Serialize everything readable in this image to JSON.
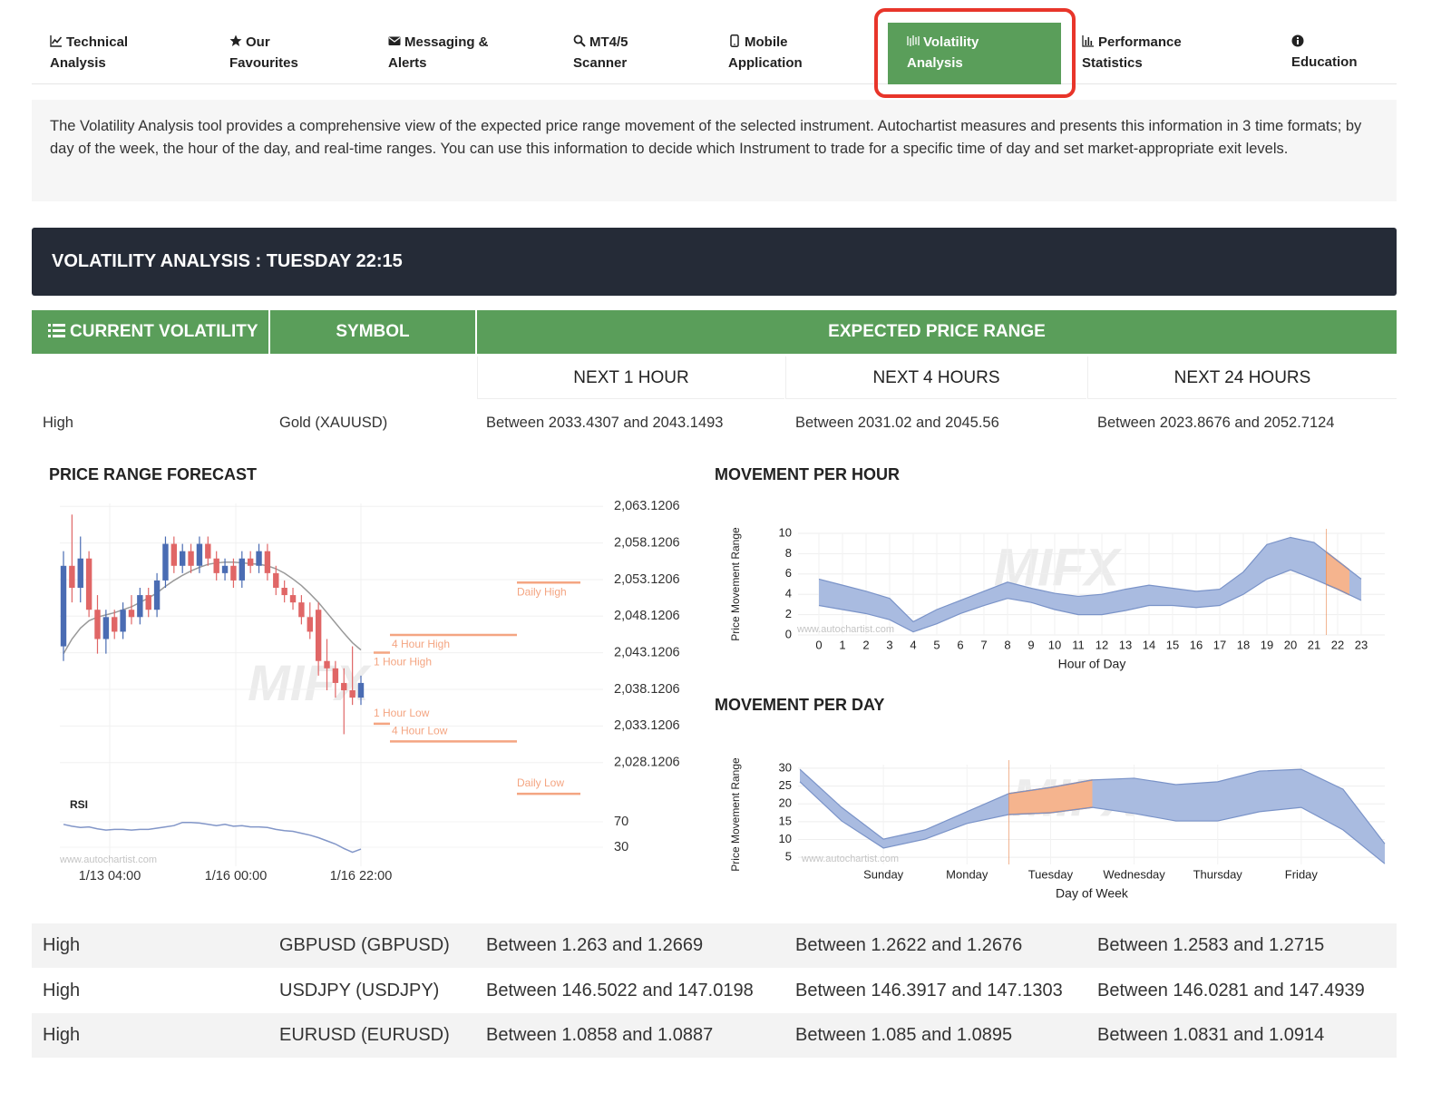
{
  "nav": [
    {
      "label": [
        "Technical",
        "Analysis"
      ]
    },
    {
      "label": [
        "Our",
        "Favourites"
      ]
    },
    {
      "label": [
        "Messaging &",
        "Alerts"
      ]
    },
    {
      "label": [
        "MT4/5",
        "Scanner"
      ]
    },
    {
      "label": [
        "Mobile",
        "Application"
      ]
    },
    {
      "label": [
        "Volatility",
        "Analysis"
      ],
      "active": true
    },
    {
      "label": [
        "Performance",
        "Statistics"
      ]
    },
    {
      "label": [
        "Education"
      ]
    }
  ],
  "description": "The Volatility Analysis tool provides a comprehensive view of the expected price range movement of the selected instrument. Autochartist measures and presents this information in 3 time formats; by day of the week, the hour of the day, and real-time ranges. You can use this information to decide which Instrument to trade for a specific time of day and set market-appropriate exit levels.",
  "header": "VOLATILITY ANALYSIS : TUESDAY 22:15",
  "table": {
    "columns": [
      "CURRENT VOLATILITY",
      "SYMBOL",
      "EXPECTED PRICE RANGE"
    ],
    "subcolumns": [
      "NEXT 1 HOUR",
      "NEXT 4 HOURS",
      "NEXT 24 HOURS"
    ],
    "rows": [
      [
        "High",
        "Gold (XAUUSD)",
        "Between 2033.4307 and 2043.1493",
        "Between 2031.02 and 2045.56",
        "Between 2023.8676 and 2052.7124"
      ],
      [
        "High",
        "GBPUSD (GBPUSD)",
        "Between 1.263 and 1.2669",
        "Between 1.2622 and 1.2676",
        "Between 1.2583 and 1.2715"
      ],
      [
        "High",
        "USDJPY (USDJPY)",
        "Between 146.5022 and 147.0198",
        "Between 146.3917 and 147.1303",
        "Between 146.0281 and 147.4939"
      ],
      [
        "High",
        "EURUSD (EURUSD)",
        "Between 1.0858 and 1.0887",
        "Between 1.085 and 1.0895",
        "Between 1.0831 and 1.0914"
      ]
    ]
  },
  "watermark": {
    "logo": "MIFX",
    "url": "www.autochartist.com"
  },
  "price_chart": {
    "type": "candlestick",
    "title": "PRICE RANGE FORECAST",
    "ylim": [
      2024,
      2066
    ],
    "yticks": [
      {
        "value": 2063.1206,
        "label": "2,063.1206"
      },
      {
        "value": 2058.1206,
        "label": "2,058.1206"
      },
      {
        "value": 2053.1206,
        "label": "2,053.1206"
      },
      {
        "value": 2048.1206,
        "label": "2,048.1206"
      },
      {
        "value": 2043.1206,
        "label": "2,043.1206"
      },
      {
        "value": 2038.1206,
        "label": "2,038.1206"
      },
      {
        "value": 2033.1206,
        "label": "2,033.1206"
      },
      {
        "value": 2028.1206,
        "label": "2,028.1206"
      }
    ],
    "x_labels": [
      "1/13 04:00",
      "1/16 00:00",
      "1/16 22:00"
    ],
    "up_color": "#4a6cb3",
    "down_color": "#e06666",
    "ma_color": "#999999",
    "level_color": "#f4a582",
    "candles": [
      [
        2044,
        2057,
        2042,
        2055
      ],
      [
        2055,
        2062,
        2050,
        2052
      ],
      [
        2052,
        2059,
        2050,
        2056
      ],
      [
        2056,
        2057,
        2048,
        2049
      ],
      [
        2049,
        2051,
        2043,
        2045
      ],
      [
        2045,
        2049,
        2043,
        2048
      ],
      [
        2048,
        2049,
        2045,
        2046
      ],
      [
        2046,
        2050,
        2045,
        2049
      ],
      [
        2049,
        2051,
        2047,
        2048
      ],
      [
        2048,
        2052,
        2047,
        2051
      ],
      [
        2051,
        2052,
        2048,
        2049
      ],
      [
        2049,
        2054,
        2048,
        2053
      ],
      [
        2053,
        2059,
        2052,
        2058
      ],
      [
        2058,
        2059,
        2054,
        2055
      ],
      [
        2055,
        2058,
        2054,
        2057
      ],
      [
        2057,
        2058,
        2054,
        2055
      ],
      [
        2055,
        2059,
        2054,
        2058
      ],
      [
        2058,
        2059,
        2055,
        2056
      ],
      [
        2056,
        2057,
        2053,
        2054
      ],
      [
        2054,
        2056,
        2053,
        2055
      ],
      [
        2055,
        2056,
        2052,
        2053
      ],
      [
        2053,
        2057,
        2052,
        2056
      ],
      [
        2056,
        2057,
        2054,
        2055
      ],
      [
        2055,
        2058,
        2054,
        2057
      ],
      [
        2057,
        2058,
        2053,
        2054
      ],
      [
        2054,
        2055,
        2051,
        2052
      ],
      [
        2052,
        2053,
        2050,
        2051
      ],
      [
        2051,
        2052,
        2049,
        2050
      ],
      [
        2050,
        2051,
        2047,
        2048
      ],
      [
        2048,
        2050,
        2045,
        2046
      ],
      [
        2049,
        2050,
        2040,
        2042
      ],
      [
        2042,
        2045,
        2038,
        2041
      ],
      [
        2041,
        2042,
        2037,
        2039
      ],
      [
        2039,
        2041,
        2032,
        2038
      ],
      [
        2038,
        2044,
        2036,
        2037
      ],
      [
        2037,
        2040,
        2036,
        2039
      ]
    ],
    "ma": [
      2043,
      2045,
      2046.5,
      2047.5,
      2048,
      2048.3,
      2048.6,
      2049,
      2049.4,
      2050,
      2050.6,
      2051.3,
      2052.2,
      2053,
      2053.7,
      2054.3,
      2054.8,
      2055.2,
      2055.4,
      2055.5,
      2055.5,
      2055.4,
      2055.3,
      2055.2,
      2055,
      2054.6,
      2054,
      2053.2,
      2052.3,
      2051.2,
      2050,
      2048.6,
      2047.2,
      2045.8,
      2044.5,
      2043.5
    ],
    "levels": [
      {
        "name": "Daily High",
        "value": 2052.7124
      },
      {
        "name": "4 Hour High",
        "value": 2045.56
      },
      {
        "name": "1 Hour High",
        "value": 2043.1493
      },
      {
        "name": "1 Hour Low",
        "value": 2033.4307
      },
      {
        "name": "4 Hour Low",
        "value": 2031.02
      },
      {
        "name": "Daily Low",
        "value": 2023.8676
      }
    ],
    "rsi_label": "RSI",
    "rsi_color": "#8296c8",
    "rsi_ylim": [
      0,
      100
    ],
    "rsi_ticks": [
      70,
      30
    ],
    "rsi": [
      66,
      63,
      61,
      62,
      59,
      57,
      58,
      58,
      57,
      58,
      58,
      60,
      62,
      64,
      69,
      69,
      68,
      66,
      64,
      66,
      63,
      64,
      62,
      62,
      61,
      58,
      56,
      55,
      52,
      49,
      45,
      40,
      35,
      28,
      22,
      27
    ]
  },
  "hour_chart": {
    "type": "range-area",
    "title": "MOVEMENT PER HOUR",
    "xlabel": "Hour of Day",
    "ylabel": "Price Movement Range",
    "xlim": [
      -1,
      24
    ],
    "ylim": [
      0,
      10
    ],
    "xticks": [
      0,
      1,
      2,
      3,
      4,
      5,
      6,
      7,
      8,
      9,
      10,
      11,
      12,
      13,
      14,
      15,
      16,
      17,
      18,
      19,
      20,
      21,
      22,
      23
    ],
    "yticks": [
      0,
      2,
      4,
      6,
      8,
      10
    ],
    "color": "#a9bbe0",
    "line_color": "#7a93c8",
    "highlight_color": "#f5b48e",
    "highlight_line": "#e8844a",
    "highlight": [
      21.5,
      22.5
    ],
    "x": [
      0,
      1,
      2,
      3,
      4,
      5,
      6,
      7,
      8,
      9,
      10,
      11,
      12,
      13,
      14,
      15,
      16,
      17,
      18,
      19,
      20,
      21,
      22,
      23
    ],
    "low": [
      2.9,
      2.5,
      2.1,
      1.5,
      0.3,
      1.1,
      2.1,
      2.9,
      3.6,
      3.2,
      2.5,
      2.0,
      2.0,
      2.4,
      2.9,
      2.9,
      2.7,
      2.9,
      4.0,
      5.5,
      6.4,
      5.5,
      4.5,
      3.4
    ],
    "high": [
      5.5,
      4.9,
      4.3,
      3.6,
      1.3,
      2.5,
      3.4,
      4.3,
      5.2,
      4.6,
      4.1,
      3.8,
      4.0,
      4.5,
      4.9,
      4.6,
      4.3,
      4.5,
      6.2,
      8.9,
      9.6,
      9.1,
      7.3,
      5.5
    ]
  },
  "day_chart": {
    "type": "range-area",
    "title": "MOVEMENT PER DAY",
    "xlabel": "Day of Week",
    "ylabel": "Price Movement Range",
    "xlim": [
      -1,
      6
    ],
    "ylim": [
      3,
      31
    ],
    "xticks": [
      {
        "value": 0,
        "label": "Sunday"
      },
      {
        "value": 1,
        "label": "Monday"
      },
      {
        "value": 2,
        "label": "Tuesday"
      },
      {
        "value": 3,
        "label": "Wednesday"
      },
      {
        "value": 4,
        "label": "Thursday"
      },
      {
        "value": 5,
        "label": "Friday"
      }
    ],
    "yticks": [
      5,
      10,
      15,
      20,
      25,
      30
    ],
    "color": "#a9bbe0",
    "line_color": "#7a93c8",
    "highlight_color": "#f5b48e",
    "highlight_line": "#e8844a",
    "highlight": [
      1.5,
      2.5
    ],
    "x": [
      -1,
      -0.5,
      0,
      0.5,
      1,
      1.5,
      2,
      2.5,
      3,
      3.5,
      4,
      4.5,
      5,
      5.5,
      6
    ],
    "low": [
      26.2,
      15.2,
      7.6,
      10.1,
      14.5,
      17.0,
      17.5,
      19.0,
      17.3,
      15.2,
      15.2,
      17.8,
      19.0,
      12.7,
      3.2
    ],
    "high": [
      29.7,
      19.0,
      10.1,
      12.7,
      17.8,
      22.9,
      24.6,
      26.7,
      27.2,
      25.4,
      26.2,
      29.2,
      29.7,
      24.1,
      8.8
    ]
  }
}
